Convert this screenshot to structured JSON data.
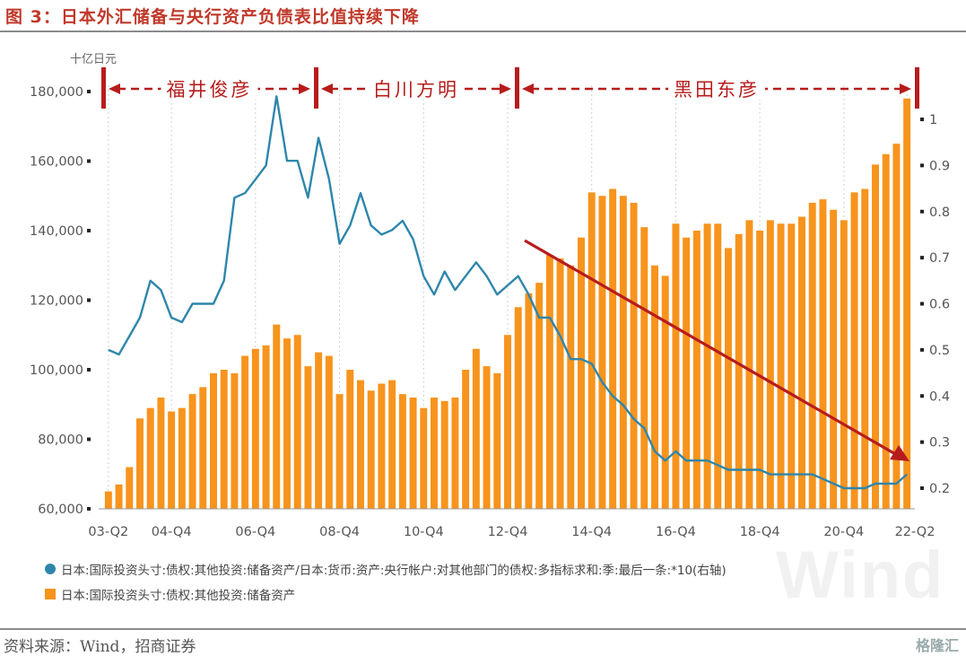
{
  "title": "图 3：日本外汇储备与央行资产负债表比值持续下降",
  "source": "资料来源：Wind，招商证券",
  "watermark": "格隆汇",
  "big_watermark": "Wind",
  "unit_label": "十亿日元",
  "eras": [
    {
      "label": "福井俊彦"
    },
    {
      "label": "白川方明"
    },
    {
      "label": "黑田东彦"
    }
  ],
  "chart_data": {
    "type": "bar+line",
    "left_axis": {
      "ticks": [
        "60,000",
        "80,000",
        "100,000",
        "120,000",
        "140,000",
        "160,000",
        "180,000"
      ],
      "ylim": [
        60000,
        180000
      ]
    },
    "right_axis": {
      "ticks": [
        "0.2",
        "0.3",
        "0.4",
        "0.5",
        "0.6",
        "0.7",
        "0.8",
        "0.9",
        "1"
      ],
      "ylim": [
        0.2,
        1.0
      ]
    },
    "x_tick_labels": [
      "03-Q2",
      "04-Q4",
      "06-Q4",
      "08-Q4",
      "10-Q4",
      "12-Q4",
      "14-Q4",
      "16-Q4",
      "18-Q4",
      "20-Q4",
      "22-Q2"
    ],
    "bars": {
      "name": "日本:国际投资头寸:债权:其他投资:储备资产",
      "color": "#f7941d",
      "values": [
        65000,
        67000,
        72000,
        86000,
        89000,
        92000,
        88000,
        89000,
        93000,
        95000,
        99000,
        100000,
        99000,
        104000,
        106000,
        107000,
        113000,
        109000,
        110000,
        101000,
        105000,
        104000,
        93000,
        100000,
        97000,
        94000,
        96000,
        97000,
        93000,
        92000,
        89000,
        92000,
        91000,
        92000,
        100000,
        106000,
        101000,
        99000,
        110000,
        118000,
        122000,
        125000,
        133000,
        132000,
        130000,
        138000,
        151000,
        150000,
        152000,
        150000,
        148000,
        141000,
        130000,
        127000,
        142000,
        138000,
        140000,
        142000,
        142000,
        135000,
        139000,
        143000,
        140000,
        143000,
        142000,
        142000,
        144000,
        148000,
        149000,
        146000,
        143000,
        151000,
        152000,
        159000,
        162000,
        165000,
        178000
      ]
    },
    "line": {
      "name": "日本:国际投资头寸:债权:其他投资:储备资产/日本:货币:资产:央行帐户:对其他部门的债权:多指标求和:季:最后一条:*10(右轴)",
      "color": "#2e86ab",
      "values": [
        0.5,
        0.49,
        0.53,
        0.57,
        0.65,
        0.63,
        0.57,
        0.56,
        0.6,
        0.6,
        0.6,
        0.65,
        0.83,
        0.84,
        0.87,
        0.9,
        1.05,
        0.91,
        0.91,
        0.83,
        0.96,
        0.87,
        0.73,
        0.77,
        0.84,
        0.77,
        0.75,
        0.76,
        0.78,
        0.74,
        0.66,
        0.62,
        0.67,
        0.63,
        0.66,
        0.69,
        0.66,
        0.62,
        0.64,
        0.66,
        0.62,
        0.57,
        0.57,
        0.53,
        0.48,
        0.48,
        0.47,
        0.43,
        0.4,
        0.38,
        0.35,
        0.33,
        0.28,
        0.26,
        0.28,
        0.26,
        0.26,
        0.26,
        0.25,
        0.24,
        0.24,
        0.24,
        0.24,
        0.23,
        0.23,
        0.23,
        0.23,
        0.23,
        0.22,
        0.21,
        0.2,
        0.2,
        0.2,
        0.21,
        0.21,
        0.21,
        0.23
      ]
    },
    "legend": [
      {
        "kind": "line",
        "label": "日本:国际投资头寸:债权:其他投资:储备资产/日本:货币:资产:央行帐户:对其他部门的债权:多指标求和:季:最后一条:*10(右轴)"
      },
      {
        "kind": "bar",
        "label": "日本:国际投资头寸:债权:其他投资:储备资产"
      }
    ],
    "grid": "vertical-dashed",
    "legend_position": "bottom"
  }
}
